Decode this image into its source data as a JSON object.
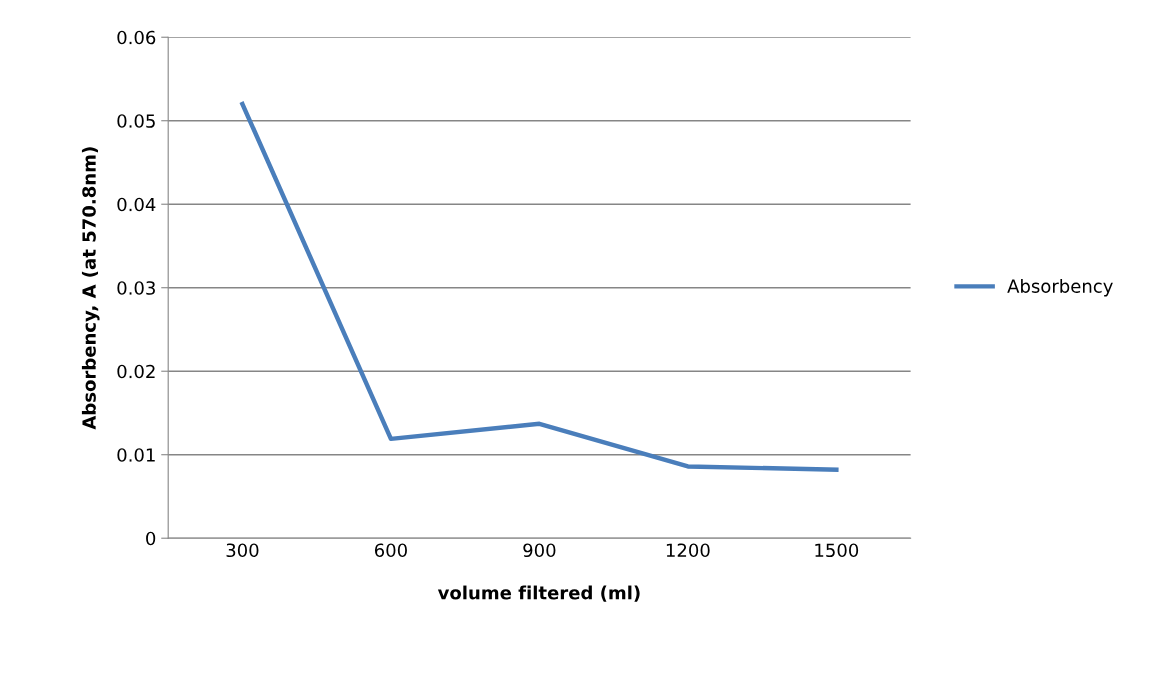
{
  "chart_data": {
    "type": "line",
    "xlabel": "volume filtered (ml)",
    "ylabel": "Absorbency, A (at 570.8nm)",
    "categories": [
      "300",
      "600",
      "900",
      "1200",
      "1500"
    ],
    "series": [
      {
        "name": "Absorbency",
        "color": "#4a7ebb",
        "values": [
          0.052,
          0.0119,
          0.0137,
          0.0086,
          0.0082
        ]
      }
    ],
    "ylim": [
      0,
      0.06
    ],
    "yticks": [
      0,
      0.01,
      0.02,
      0.03,
      0.04,
      0.05,
      0.06
    ],
    "grid": "y",
    "legend": "right",
    "marker": "none",
    "line_style": "solid"
  }
}
